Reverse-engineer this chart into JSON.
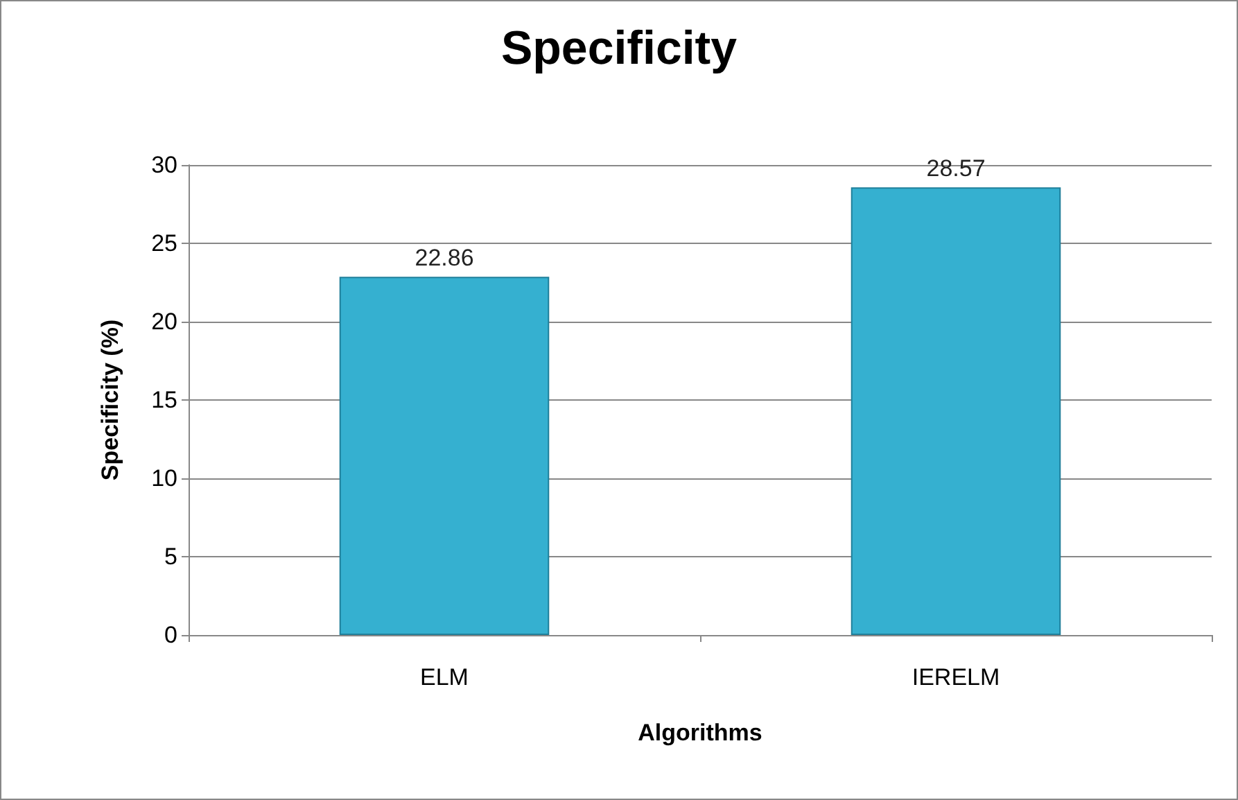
{
  "chart_data": {
    "type": "bar",
    "title": "Specificity",
    "xlabel": "Algorithms",
    "ylabel": "Specificity (%)",
    "categories": [
      "ELM",
      "IERELM"
    ],
    "values": [
      22.86,
      28.57
    ],
    "color": "#35b0d0",
    "ylim": [
      0,
      30
    ],
    "yticks": [
      0,
      5,
      10,
      15,
      20,
      25,
      30
    ],
    "grid": "y",
    "data_labels": true
  }
}
